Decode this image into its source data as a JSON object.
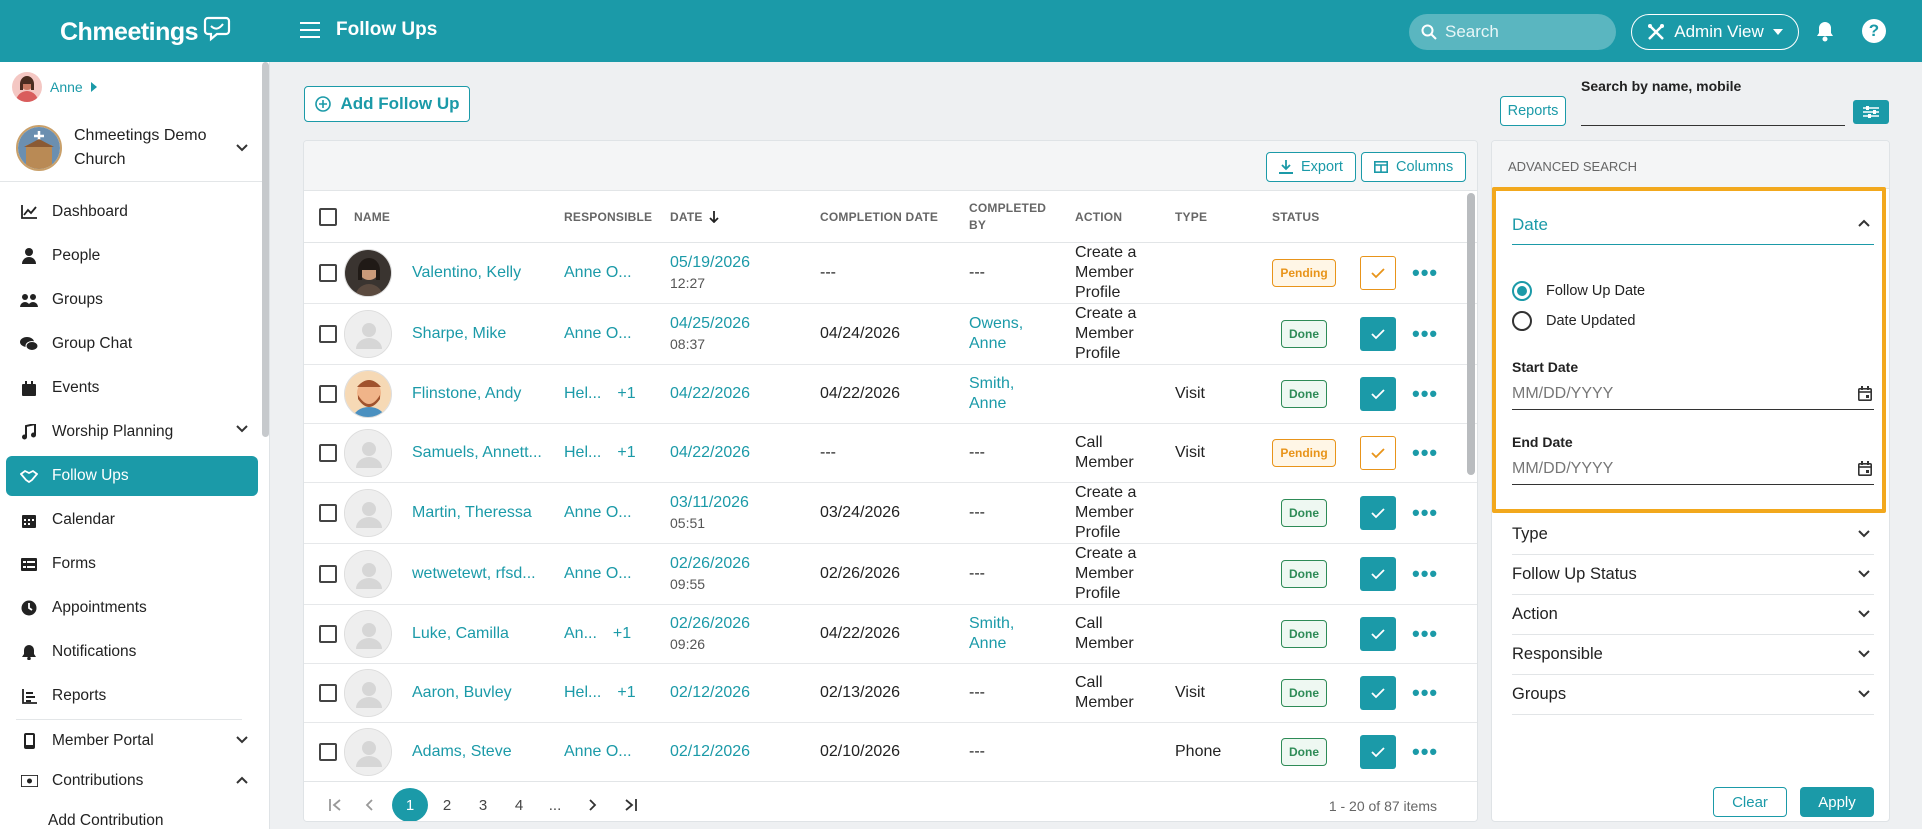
{
  "header": {
    "brand": "Chmeetings",
    "title": "Follow Ups",
    "search_placeholder": "Search",
    "admin_view": "Admin View"
  },
  "sidebar": {
    "user": "Anne",
    "church": "Chmeetings Demo Church",
    "items": [
      {
        "label": "Dashboard",
        "icon": "chart-line-icon"
      },
      {
        "label": "People",
        "icon": "person-icon"
      },
      {
        "label": "Groups",
        "icon": "groups-icon"
      },
      {
        "label": "Group Chat",
        "icon": "chat-icon"
      },
      {
        "label": "Events",
        "icon": "calendar-icon"
      },
      {
        "label": "Worship Planning",
        "icon": "music-icon"
      },
      {
        "label": "Follow Ups",
        "icon": "handshake-icon"
      },
      {
        "label": "Calendar",
        "icon": "calendar-grid-icon"
      },
      {
        "label": "Forms",
        "icon": "forms-icon"
      },
      {
        "label": "Appointments",
        "icon": "clock-icon"
      },
      {
        "label": "Notifications",
        "icon": "bell-icon"
      },
      {
        "label": "Reports",
        "icon": "report-icon"
      },
      {
        "label": "Member Portal",
        "icon": "mobile-icon"
      },
      {
        "label": "Contributions",
        "icon": "money-icon"
      }
    ],
    "sub_items": [
      "Add Contribution"
    ]
  },
  "toolbar": {
    "add_follow_up": "Add Follow Up",
    "export": "Export",
    "columns": "Columns"
  },
  "table": {
    "columns": [
      "NAME",
      "RESPONSIBLE",
      "DATE",
      "COMPLETION DATE",
      "COMPLETED BY",
      "ACTION",
      "TYPE",
      "STATUS"
    ],
    "rows": [
      {
        "name": "Valentino, Kelly",
        "responsible": "Anne O...",
        "resp_extra": "",
        "date": "05/19/2026",
        "time": "12:27",
        "completion": "---",
        "completed_by": "---",
        "action": "Create a Member Profile",
        "type": "",
        "status": "Pending"
      },
      {
        "name": "Sharpe, Mike",
        "responsible": "Anne O...",
        "resp_extra": "",
        "date": "04/25/2026",
        "time": "08:37",
        "completion": "04/24/2026",
        "completed_by": "Owens, Anne",
        "action": "Create a Member Profile",
        "type": "",
        "status": "Done"
      },
      {
        "name": "Flinstone, Andy",
        "responsible": "Hel...",
        "resp_extra": "+1",
        "date": "04/22/2026",
        "time": "",
        "completion": "04/22/2026",
        "completed_by": "Smith, Anne",
        "action": "",
        "type": "Visit",
        "status": "Done"
      },
      {
        "name": "Samuels, Annett...",
        "responsible": "Hel...",
        "resp_extra": "+1",
        "date": "04/22/2026",
        "time": "",
        "completion": "---",
        "completed_by": "---",
        "action": "Call Member",
        "type": "Visit",
        "status": "Pending"
      },
      {
        "name": "Martin, Theressa",
        "responsible": "Anne O...",
        "resp_extra": "",
        "date": "03/11/2026",
        "time": "05:51",
        "completion": "03/24/2026",
        "completed_by": "---",
        "action": "Create a Member Profile",
        "type": "",
        "status": "Done"
      },
      {
        "name": "wetwetewt, rfsd...",
        "responsible": "Anne O...",
        "resp_extra": "",
        "date": "02/26/2026",
        "time": "09:55",
        "completion": "02/26/2026",
        "completed_by": "---",
        "action": "Create a Member Profile",
        "type": "",
        "status": "Done"
      },
      {
        "name": "Luke, Camilla",
        "responsible": "An...",
        "resp_extra": "+1",
        "date": "02/26/2026",
        "time": "09:26",
        "completion": "04/22/2026",
        "completed_by": "Smith, Anne",
        "action": "Call Member",
        "type": "",
        "status": "Done"
      },
      {
        "name": "Aaron, Buvley",
        "responsible": "Hel...",
        "resp_extra": "+1",
        "date": "02/12/2026",
        "time": "",
        "completion": "02/13/2026",
        "completed_by": "---",
        "action": "Call Member",
        "type": "Visit",
        "status": "Done"
      },
      {
        "name": "Adams, Steve",
        "responsible": "Anne O...",
        "resp_extra": "",
        "date": "02/12/2026",
        "time": "",
        "completion": "02/10/2026",
        "completed_by": "---",
        "action": "",
        "type": "Phone",
        "status": "Done"
      }
    ]
  },
  "pagination": {
    "pages": [
      "1",
      "2",
      "3",
      "4",
      "..."
    ],
    "current": "1",
    "info": "1 - 20 of 87 items"
  },
  "right_panel": {
    "reports": "Reports",
    "search_label": "Search by name, mobile",
    "advanced_search": "ADVANCED SEARCH",
    "date_section": "Date",
    "date_options": [
      "Follow Up Date",
      "Date Updated"
    ],
    "selected_date_option": "Follow Up Date",
    "start_date_label": "Start Date",
    "end_date_label": "End Date",
    "date_placeholder": "MM/DD/YYYY",
    "sections": [
      "Type",
      "Follow Up Status",
      "Action",
      "Responsible",
      "Groups"
    ],
    "clear": "Clear",
    "apply": "Apply"
  },
  "colors": {
    "brand": "#1b9aa8",
    "pending": "#e8941a",
    "done": "#2e8b57",
    "highlight": "#f2a81d"
  }
}
